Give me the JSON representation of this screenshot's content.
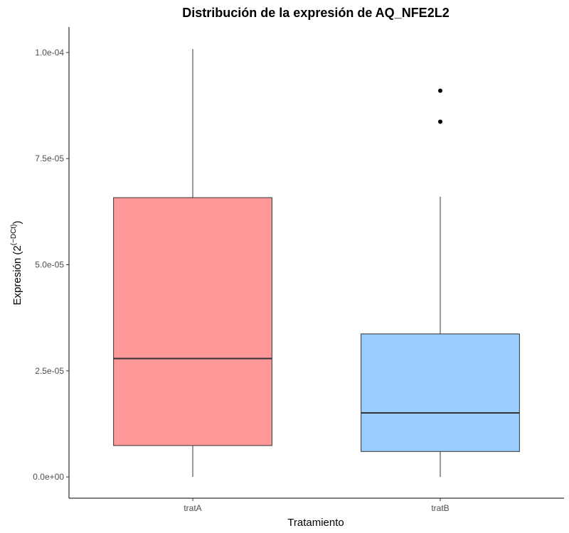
{
  "chart_data": {
    "type": "box",
    "title": "Distribución de la expresión de AQ_NFE2L2",
    "xlabel": "Tratamiento",
    "ylabel": {
      "text": "Expresión (2",
      "superscript": "(−DCt)",
      "suffix": ")"
    },
    "categories": [
      "tratA",
      "tratB"
    ],
    "ylim": [
      -5e-06,
      0.000106
    ],
    "yticks": [
      0,
      2.5e-05,
      5e-05,
      7.5e-05,
      0.0001
    ],
    "ytick_labels": [
      "0.0e+00",
      "2.5e-05",
      "5.0e-05",
      "7.5e-05",
      "1.0e-04"
    ],
    "grid": false,
    "legend": "none",
    "series": [
      {
        "category": "tratA",
        "color": "#ff9999",
        "whisker_low": 0.0,
        "q1": 7.4e-06,
        "median": 2.79e-05,
        "q3": 6.58e-05,
        "whisker_high": 0.0001008,
        "outliers": []
      },
      {
        "category": "tratB",
        "color": "#99ccff",
        "whisker_low": 0.0,
        "q1": 6e-06,
        "median": 1.51e-05,
        "q3": 3.37e-05,
        "whisker_high": 6.6e-05,
        "outliers": [
          8.37e-05,
          9.1e-05
        ]
      }
    ]
  }
}
